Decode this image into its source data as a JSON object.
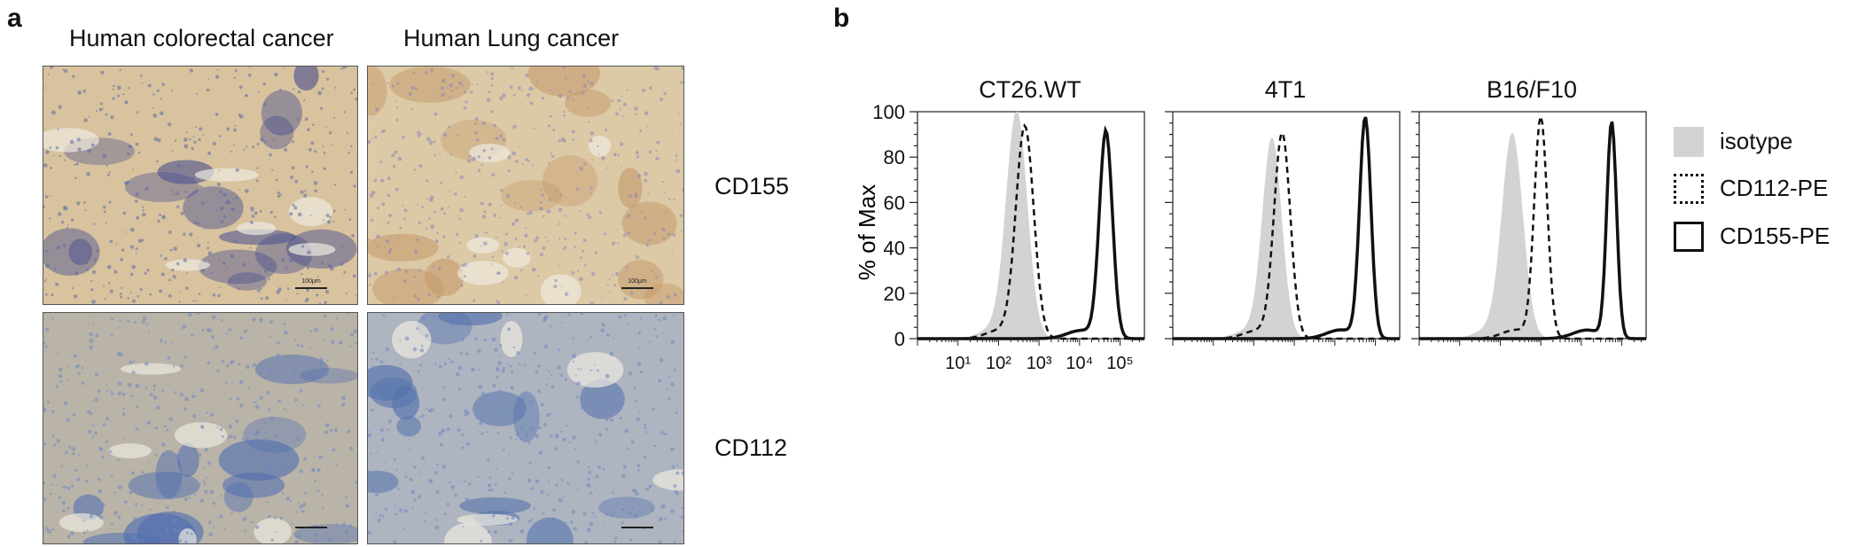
{
  "panel_a": {
    "letter": "a",
    "columns": [
      "Human colorectal cancer",
      "Human Lung cancer"
    ],
    "rows": [
      "CD155",
      "CD112"
    ],
    "images": [
      {
        "name": "colorectal-cd155",
        "scale_bar": "100μm",
        "tint": "#d8c39e"
      },
      {
        "name": "lung-cd155",
        "scale_bar": "100μm",
        "tint": "#dcc9a6"
      },
      {
        "name": "colorectal-cd112",
        "scale_bar": "",
        "tint": "#b9b3a8"
      },
      {
        "name": "lung-cd112",
        "scale_bar": "",
        "tint": "#aeb4c0"
      }
    ]
  },
  "panel_b": {
    "letter": "b",
    "ylabel": "% of Max",
    "y_ticks": [
      "0",
      "20",
      "40",
      "60",
      "80",
      "100"
    ],
    "x_ticks": [
      "10¹",
      "10²",
      "10³",
      "10⁴",
      "10⁵"
    ],
    "legend": [
      {
        "label": "isotype",
        "style": "filled-gray",
        "color": "#d3d3d3"
      },
      {
        "label": "CD112-PE",
        "style": "dashed"
      },
      {
        "label": "CD155-PE",
        "style": "solid"
      }
    ]
  },
  "chart_data": [
    {
      "type": "area",
      "title": "CT26.WT",
      "xlabel": "",
      "ylabel": "% of Max",
      "x_scale": "log10",
      "xlim_log10": [
        0,
        5.6
      ],
      "ylim": [
        0,
        100
      ],
      "series": [
        {
          "name": "isotype",
          "peak_log10": 2.45,
          "peak": 100,
          "width": 0.26
        },
        {
          "name": "CD112-PE",
          "peak_log10": 2.65,
          "peak": 93,
          "width": 0.22
        },
        {
          "name": "CD155-PE",
          "peak_log10": 4.65,
          "peak": 91,
          "width": 0.16
        }
      ]
    },
    {
      "type": "area",
      "title": "4T1",
      "xlabel": "",
      "ylabel": "% of Max",
      "x_scale": "log10",
      "xlim_log10": [
        0,
        5.6
      ],
      "ylim": [
        0,
        100
      ],
      "series": [
        {
          "name": "isotype",
          "peak_log10": 2.45,
          "peak": 88,
          "width": 0.24
        },
        {
          "name": "CD112-PE",
          "peak_log10": 2.7,
          "peak": 90,
          "width": 0.2
        },
        {
          "name": "CD155-PE",
          "peak_log10": 4.75,
          "peak": 97,
          "width": 0.14
        }
      ]
    },
    {
      "type": "area",
      "title": "B16/F10",
      "xlabel": "",
      "ylabel": "% of Max",
      "x_scale": "log10",
      "xlim_log10": [
        0,
        5.6
      ],
      "ylim": [
        0,
        100
      ],
      "series": [
        {
          "name": "isotype",
          "peak_log10": 2.3,
          "peak": 90,
          "width": 0.26
        },
        {
          "name": "CD112-PE",
          "peak_log10": 3.0,
          "peak": 97,
          "width": 0.16
        },
        {
          "name": "CD155-PE",
          "peak_log10": 4.75,
          "peak": 95,
          "width": 0.12
        }
      ]
    }
  ]
}
